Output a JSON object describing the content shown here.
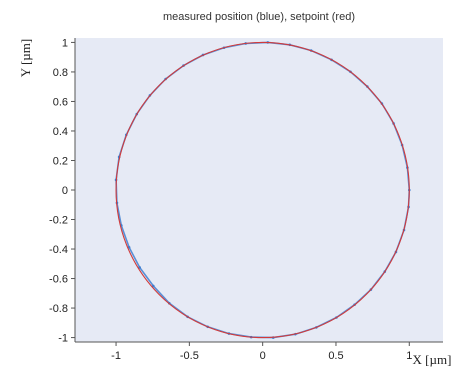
{
  "chart_data": {
    "type": "scatter",
    "title": "measured position (blue), setpoint (red)",
    "xlabel": "X [µm]",
    "ylabel": "Y [µm]",
    "xlim": [
      -1.28,
      1.23
    ],
    "ylim": [
      -1.03,
      1.03
    ],
    "x_ticks": [
      -1,
      -0.5,
      0,
      0.5,
      1
    ],
    "x_tick_labels": [
      "-1",
      "-0.5",
      "0",
      "0.5",
      "1"
    ],
    "y_ticks": [
      -1,
      -0.8,
      -0.6,
      -0.4,
      -0.2,
      0,
      0.2,
      0.4,
      0.6,
      0.8,
      1
    ],
    "y_tick_labels": [
      "-1",
      "-0.8",
      "-0.6",
      "-0.4",
      "-0.2",
      "0",
      "0.2",
      "0.4",
      "0.6",
      "0.8",
      "1"
    ],
    "grid": false,
    "legend": "none",
    "series": [
      {
        "name": "measured position",
        "color": "#3f7fd0",
        "x": [
          1.0,
          0.987,
          0.951,
          0.893,
          0.813,
          0.714,
          0.599,
          0.47,
          0.331,
          0.185,
          0.035,
          -0.116,
          -0.264,
          -0.407,
          -0.54,
          -0.662,
          -0.769,
          -0.859,
          -0.93,
          -0.979,
          -1.0,
          -0.994,
          -0.964,
          -0.911,
          -0.839,
          -0.746,
          -0.637,
          -0.512,
          -0.375,
          -0.23,
          -0.078,
          0.072,
          0.223,
          0.366,
          0.503,
          0.627,
          0.738,
          0.833,
          0.909,
          0.964,
          0.995
        ],
        "y": [
          0.0,
          0.152,
          0.305,
          0.451,
          0.586,
          0.701,
          0.801,
          0.882,
          0.945,
          0.984,
          1.0,
          0.993,
          0.964,
          0.915,
          0.843,
          0.752,
          0.641,
          0.514,
          0.374,
          0.224,
          0.069,
          -0.087,
          -0.24,
          -0.388,
          -0.525,
          -0.65,
          -0.767,
          -0.859,
          -0.927,
          -0.973,
          -0.997,
          -1.0,
          -0.977,
          -0.931,
          -0.864,
          -0.777,
          -0.675,
          -0.553,
          -0.42,
          -0.271,
          -0.115
        ]
      },
      {
        "name": "setpoint",
        "color": "#d23a3a",
        "shape": "circle",
        "center": [
          0,
          0
        ],
        "radius": 1
      }
    ]
  }
}
